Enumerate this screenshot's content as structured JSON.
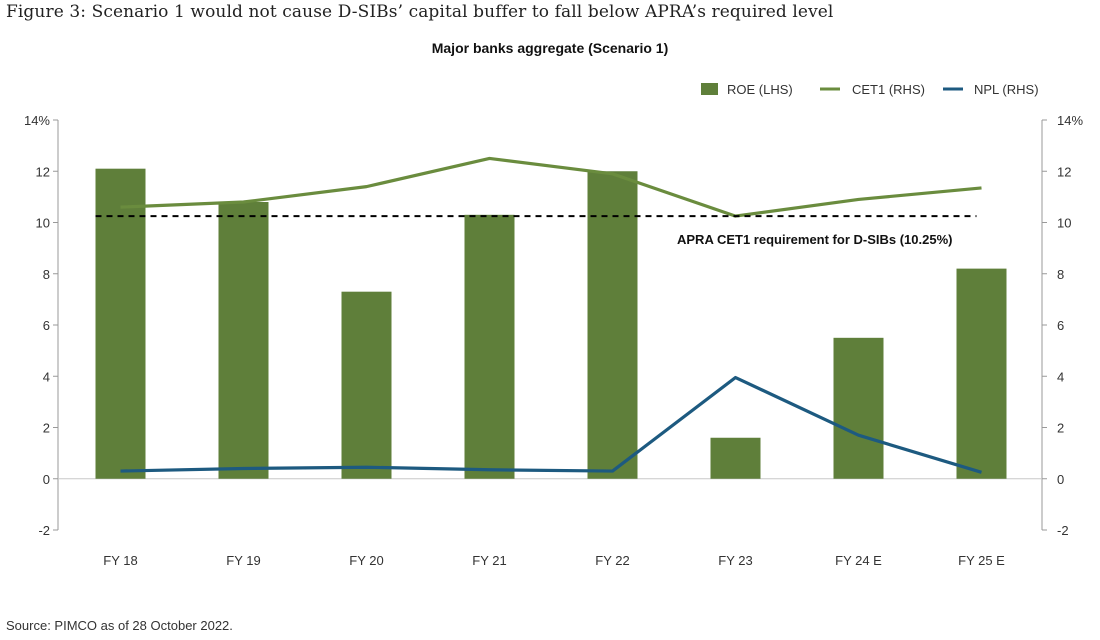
{
  "figure_title": "Figure 3: Scenario 1 would not cause D-SIBs’ capital buffer to fall below APRA’s required level",
  "source": "Source: PIMCO as of 28 October 2022.",
  "colors": {
    "roe": "#5f7f3a",
    "cet1": "#6a8c3e",
    "npl": "#1d5a80",
    "requirement": "#000000",
    "axis": "#999999"
  },
  "chart_data": {
    "type": "bar",
    "title": "Major banks aggregate (Scenario 1)",
    "categories": [
      "FY 18",
      "FY 19",
      "FY 20",
      "FY 21",
      "FY 22",
      "FY 23",
      "FY 24 E",
      "FY 25 E"
    ],
    "series": [
      {
        "name": "ROE (LHS)",
        "type": "bar",
        "axis": "left",
        "values": [
          12.1,
          10.8,
          7.3,
          10.3,
          12.0,
          1.6,
          5.5,
          8.2
        ]
      },
      {
        "name": "CET1 (RHS)",
        "type": "line",
        "axis": "right",
        "values": [
          10.6,
          10.8,
          11.4,
          12.5,
          11.9,
          10.25,
          10.9,
          11.35
        ]
      },
      {
        "name": "NPL (RHS)",
        "type": "line",
        "axis": "right",
        "values": [
          0.3,
          0.4,
          0.45,
          0.35,
          0.3,
          3.95,
          1.7,
          0.25
        ]
      }
    ],
    "reference_line": {
      "label": "APRA CET1 requirement for D-SIBs (10.25%)",
      "value": 10.25,
      "style": "dashed"
    },
    "left_axis": {
      "ticks": [
        "14%",
        "12",
        "10",
        "8",
        "6",
        "4",
        "2",
        "0",
        "-2"
      ],
      "range": [
        -2,
        14
      ]
    },
    "right_axis": {
      "ticks": [
        "14%",
        "12",
        "10",
        "8",
        "6",
        "4",
        "2",
        "0",
        "-2"
      ],
      "range": [
        -2,
        14
      ]
    },
    "legend": {
      "position": "top-right",
      "items": [
        "ROE (LHS)",
        "CET1 (RHS)",
        "NPL (RHS)"
      ]
    },
    "grid": false
  }
}
